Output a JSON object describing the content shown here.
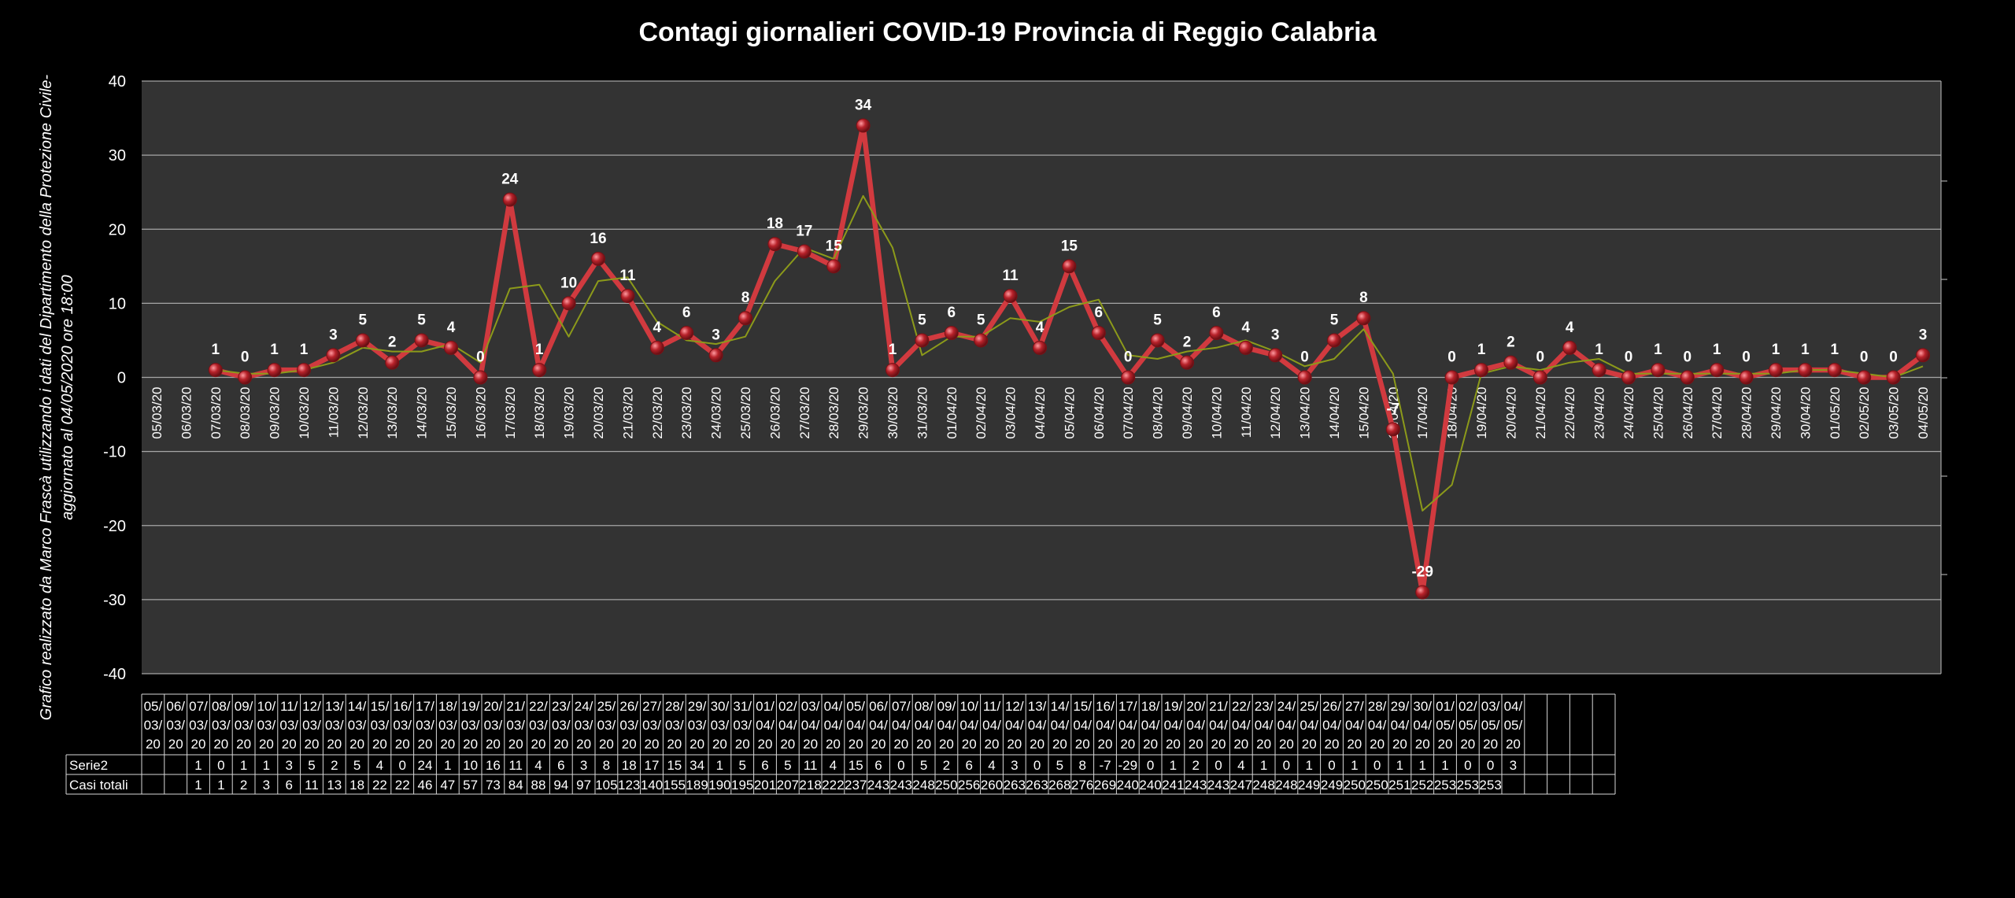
{
  "chart_data": {
    "type": "line",
    "title": "Contagi  giornalieri COVID-19 Provincia di Reggio Calabria",
    "side_note": [
      "Grafico  realizzato da Marco Frascà  utilizzando i dati del Dipartimento  della Protezione Civile-",
      "aggiornato al  04/05/2020 ore 18:00"
    ],
    "xlabel": "",
    "ylabel": "",
    "ylim": [
      -40,
      40
    ],
    "yticks": [
      -40,
      -30,
      -20,
      -10,
      0,
      10,
      20,
      30,
      40
    ],
    "grid": true,
    "legend": "none",
    "categories": [
      "05/03/20",
      "06/03/20",
      "07/03/20",
      "08/03/20",
      "09/03/20",
      "10/03/20",
      "11/03/20",
      "12/03/20",
      "13/03/20",
      "14/03/20",
      "15/03/20",
      "16/03/20",
      "17/03/20",
      "18/03/20",
      "19/03/20",
      "20/03/20",
      "21/03/20",
      "22/03/20",
      "23/03/20",
      "24/03/20",
      "25/03/20",
      "26/03/20",
      "27/03/20",
      "28/03/20",
      "29/03/20",
      "30/03/20",
      "31/03/20",
      "01/04/20",
      "02/04/20",
      "03/04/20",
      "04/04/20",
      "05/04/20",
      "06/04/20",
      "07/04/20",
      "08/04/20",
      "09/04/20",
      "10/04/20",
      "11/04/20",
      "12/04/20",
      "13/04/20",
      "14/04/20",
      "15/04/20",
      "16/04/20",
      "17/04/20",
      "18/04/20",
      "19/04/20",
      "20/04/20",
      "21/04/20",
      "22/04/20",
      "23/04/20",
      "24/04/20",
      "25/04/20",
      "26/04/20",
      "27/04/20",
      "28/04/20",
      "29/04/20",
      "30/04/20",
      "01/05/20",
      "02/05/20",
      "03/05/20",
      "04/05/20"
    ],
    "series": [
      {
        "name": "Serie2",
        "color": "#d13a3f",
        "values": [
          null,
          null,
          1,
          0,
          1,
          1,
          3,
          5,
          2,
          5,
          4,
          0,
          24,
          1,
          10,
          16,
          11,
          4,
          6,
          3,
          8,
          18,
          17,
          15,
          34,
          1,
          5,
          6,
          5,
          11,
          4,
          15,
          6,
          0,
          5,
          2,
          6,
          4,
          3,
          0,
          5,
          8,
          -7,
          -29,
          0,
          1,
          2,
          0,
          4,
          1,
          0,
          1,
          0,
          1,
          0,
          1,
          1,
          1,
          0,
          0,
          3
        ]
      },
      {
        "name": "",
        "role": "trend",
        "color": "#8c9a1a",
        "values": [
          null,
          null,
          1,
          0.5,
          0.5,
          1,
          2,
          4,
          3.5,
          3.5,
          4.5,
          2,
          12,
          12.5,
          5.5,
          13,
          13.5,
          7.5,
          5,
          4.5,
          5.5,
          13,
          17.5,
          16,
          24.5,
          17.5,
          3,
          5.5,
          5.5,
          8,
          7.5,
          9.5,
          10.5,
          3,
          2.5,
          3.5,
          4,
          5,
          3.5,
          1.5,
          2.5,
          6.5,
          0.5,
          -18,
          -14.5,
          0.5,
          1.5,
          1,
          2,
          2.5,
          0.5,
          0.5,
          0.5,
          0.5,
          0.5,
          0.5,
          1,
          1,
          0.5,
          0,
          1.5
        ]
      }
    ],
    "table": {
      "date_header": [
        [
          "05/",
          "03/",
          "20"
        ],
        [
          "06/",
          "03/",
          "20"
        ],
        [
          "07/",
          "03/",
          "20"
        ],
        [
          "08/",
          "03/",
          "20"
        ],
        [
          "09/",
          "03/",
          "20"
        ],
        [
          "10/",
          "03/",
          "20"
        ],
        [
          "11/",
          "03/",
          "20"
        ],
        [
          "12/",
          "03/",
          "20"
        ],
        [
          "13/",
          "03/",
          "20"
        ],
        [
          "14/",
          "03/",
          "20"
        ],
        [
          "15/",
          "03/",
          "20"
        ],
        [
          "16/",
          "03/",
          "20"
        ],
        [
          "17/",
          "03/",
          "20"
        ],
        [
          "18/",
          "03/",
          "20"
        ],
        [
          "19/",
          "03/",
          "20"
        ],
        [
          "20/",
          "03/",
          "20"
        ],
        [
          "21/",
          "03/",
          "20"
        ],
        [
          "22/",
          "03/",
          "20"
        ],
        [
          "23/",
          "03/",
          "20"
        ],
        [
          "24/",
          "03/",
          "20"
        ],
        [
          "25/",
          "03/",
          "20"
        ],
        [
          "26/",
          "03/",
          "20"
        ],
        [
          "27/",
          "03/",
          "20"
        ],
        [
          "28/",
          "03/",
          "20"
        ],
        [
          "29/",
          "03/",
          "20"
        ],
        [
          "30/",
          "03/",
          "20"
        ],
        [
          "31/",
          "03/",
          "20"
        ],
        [
          "01/",
          "04/",
          "20"
        ],
        [
          "02/",
          "04/",
          "20"
        ],
        [
          "03/",
          "04/",
          "20"
        ],
        [
          "04/",
          "04/",
          "20"
        ],
        [
          "05/",
          "04/",
          "20"
        ],
        [
          "06/",
          "04/",
          "20"
        ],
        [
          "07/",
          "04/",
          "20"
        ],
        [
          "08/",
          "04/",
          "20"
        ],
        [
          "09/",
          "04/",
          "20"
        ],
        [
          "10/",
          "04/",
          "20"
        ],
        [
          "11/",
          "04/",
          "20"
        ],
        [
          "12/",
          "04/",
          "20"
        ],
        [
          "13/",
          "04/",
          "20"
        ],
        [
          "14/",
          "04/",
          "20"
        ],
        [
          "15/",
          "04/",
          "20"
        ],
        [
          "16/",
          "04/",
          "20"
        ],
        [
          "17/",
          "04/",
          "20"
        ],
        [
          "18/",
          "04/",
          "20"
        ],
        [
          "19/",
          "04/",
          "20"
        ],
        [
          "20/",
          "04/",
          "20"
        ],
        [
          "21/",
          "04/",
          "20"
        ],
        [
          "22/",
          "04/",
          "20"
        ],
        [
          "23/",
          "04/",
          "20"
        ],
        [
          "24/",
          "04/",
          "20"
        ],
        [
          "25/",
          "04/",
          "20"
        ],
        [
          "26/",
          "04/",
          "20"
        ],
        [
          "27/",
          "04/",
          "20"
        ],
        [
          "28/",
          "04/",
          "20"
        ],
        [
          "29/",
          "04/",
          "20"
        ],
        [
          "30/",
          "04/",
          "20"
        ],
        [
          "01/",
          "05/",
          "20"
        ],
        [
          "02/",
          "05/",
          "20"
        ],
        [
          "03/",
          "05/",
          "20"
        ],
        [
          "04/",
          "05/",
          "20"
        ],
        [
          "",
          "",
          ""
        ],
        [
          "",
          "",
          ""
        ],
        [
          "",
          "",
          ""
        ],
        [
          "",
          "",
          ""
        ]
      ],
      "rows": [
        {
          "label": "Serie2",
          "values": [
            "",
            "",
            "1",
            "0",
            "1",
            "1",
            "3",
            "5",
            "2",
            "5",
            "4",
            "0",
            "24",
            "1",
            "10",
            "16",
            "11",
            "4",
            "6",
            "3",
            "8",
            "18",
            "17",
            "15",
            "34",
            "1",
            "5",
            "6",
            "5",
            "11",
            "4",
            "15",
            "6",
            "0",
            "5",
            "2",
            "6",
            "4",
            "3",
            "0",
            "5",
            "8",
            "-7",
            "-29",
            "0",
            "1",
            "2",
            "0",
            "4",
            "1",
            "0",
            "1",
            "0",
            "1",
            "0",
            "1",
            "1",
            "1",
            "0",
            "0",
            "3",
            "",
            "",
            "",
            ""
          ]
        },
        {
          "label": "Casi totali",
          "values": [
            "",
            "",
            "1",
            "1",
            "2",
            "3",
            "6",
            "11",
            "13",
            "18",
            "22",
            "22",
            "46",
            "47",
            "57",
            "73",
            "84",
            "88",
            "94",
            "97",
            "105",
            "123",
            "140",
            "155",
            "189",
            "190",
            "195",
            "201",
            "207",
            "218",
            "222",
            "237",
            "243",
            "243",
            "248",
            "250",
            "256",
            "260",
            "263",
            "263",
            "268",
            "276",
            "269",
            "240",
            "240",
            "241",
            "243",
            "243",
            "247",
            "248",
            "248",
            "249",
            "249",
            "250",
            "250",
            "251",
            "252",
            "253",
            "253",
            "253",
            "",
            "",
            "",
            "",
            ""
          ]
        }
      ]
    },
    "colors": {
      "background": "#000000",
      "plot_area": "#333333",
      "gridline": "#a6a6a6",
      "main_line": "#d13a3f",
      "marker": "#b8222a",
      "trend_line": "#8c9a1a",
      "text": "#ffffff"
    }
  }
}
